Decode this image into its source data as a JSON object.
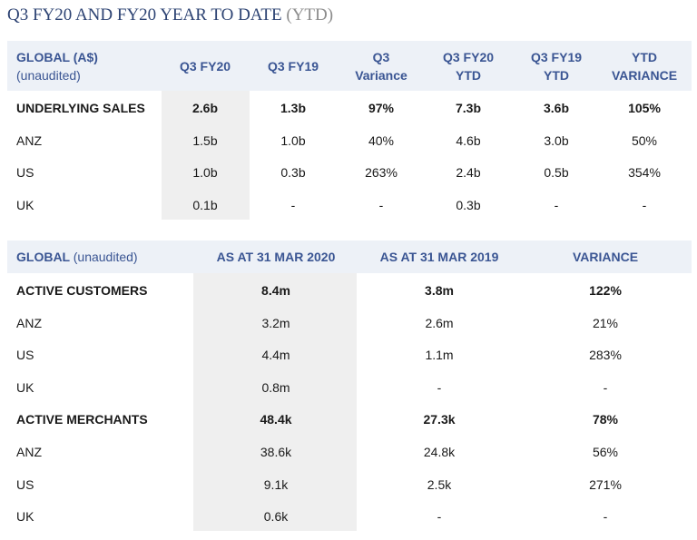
{
  "header": {
    "title": "Q3 FY20 AND FY20 YEAR TO DATE",
    "subtitle": "(YTD)"
  },
  "table1": {
    "corner": {
      "title": "GLOBAL (A$)",
      "note": "(unaudited)"
    },
    "columns": [
      [
        "Q3 FY20"
      ],
      [
        "Q3 FY19"
      ],
      [
        "Q3",
        "Variance"
      ],
      [
        "Q3 FY20",
        "YTD"
      ],
      [
        "Q3 FY19",
        "YTD"
      ],
      [
        "YTD",
        "VARIANCE"
      ]
    ],
    "rows": [
      [
        "UNDERLYING SALES",
        "2.6b",
        "1.3b",
        "97%",
        "7.3b",
        "3.6b",
        "105%"
      ],
      [
        "ANZ",
        "1.5b",
        "1.0b",
        "40%",
        "4.6b",
        "3.0b",
        "50%"
      ],
      [
        "US",
        "1.0b",
        "0.3b",
        "263%",
        "2.4b",
        "0.5b",
        "354%"
      ],
      [
        "UK",
        "0.1b",
        "-",
        "-",
        "0.3b",
        "-",
        "-"
      ]
    ]
  },
  "table2": {
    "corner": {
      "title": "GLOBAL",
      "note": "(unaudited)"
    },
    "columns": [
      "AS AT 31 MAR 2020",
      "AS AT 31 MAR 2019",
      "VARIANCE"
    ],
    "rows": [
      [
        "ACTIVE CUSTOMERS",
        "8.4m",
        "3.8m",
        "122%"
      ],
      [
        "ANZ",
        "3.2m",
        "2.6m",
        "21%"
      ],
      [
        "US",
        "4.4m",
        "1.1m",
        "283%"
      ],
      [
        "UK",
        "0.8m",
        "-",
        "-"
      ],
      [
        "ACTIVE MERCHANTS",
        "48.4k",
        "27.3k",
        "78%"
      ],
      [
        "ANZ",
        "38.6k",
        "24.8k",
        "56%"
      ],
      [
        "US",
        "9.1k",
        "2.5k",
        "271%"
      ],
      [
        "UK",
        "0.6k",
        "-",
        "-"
      ]
    ]
  }
}
